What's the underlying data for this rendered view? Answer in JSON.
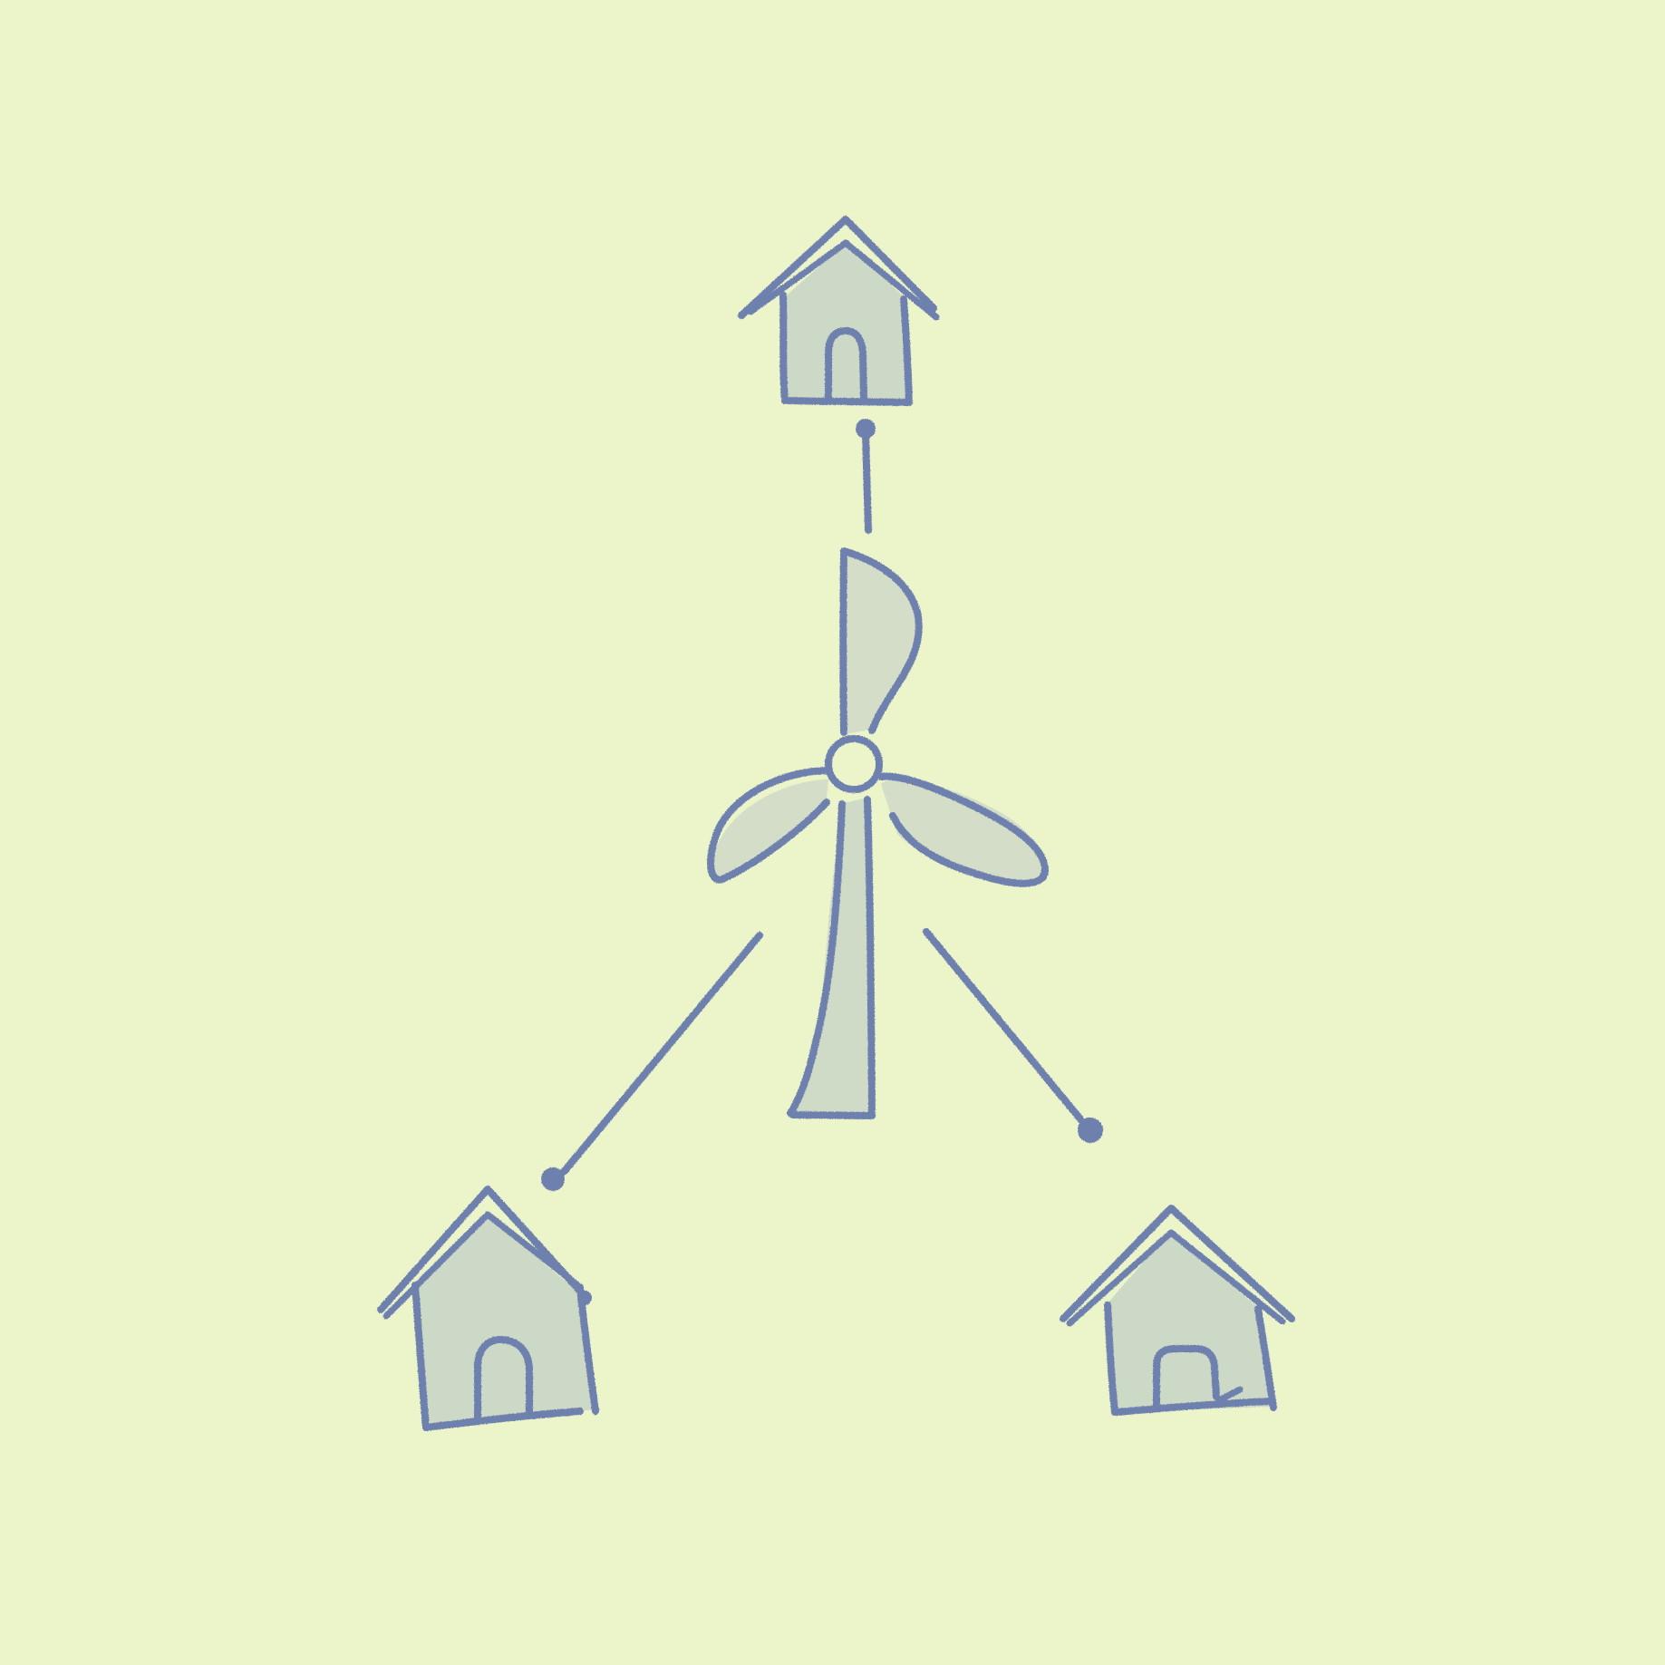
{
  "illustration": {
    "background_color": "#ecf4c9",
    "ink_color": "#6e80ad",
    "shade_color": "#b9c6c4",
    "elements": {
      "center": {
        "icon": "wind-turbine-icon"
      },
      "nodes": [
        {
          "icon": "house-icon",
          "position": "top"
        },
        {
          "icon": "house-icon",
          "position": "bottom-left"
        },
        {
          "icon": "house-icon",
          "position": "bottom-right"
        }
      ],
      "links": [
        {
          "from": "wind-turbine-icon",
          "to": "house-top"
        },
        {
          "from": "wind-turbine-icon",
          "to": "house-bottom-left"
        },
        {
          "from": "wind-turbine-icon",
          "to": "house-bottom-right"
        }
      ]
    }
  }
}
